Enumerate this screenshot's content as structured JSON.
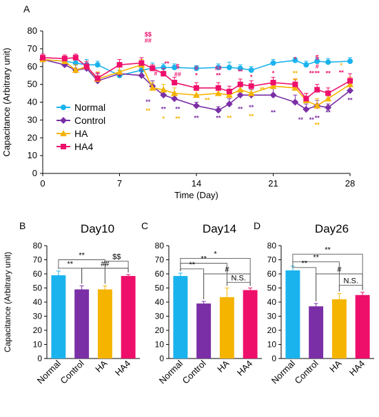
{
  "figure": {
    "panel_labels": [
      "A",
      "B",
      "C",
      "D"
    ]
  },
  "colors": {
    "Normal": "#1ab3ee",
    "Control": "#7b2fa6",
    "HA": "#f5b400",
    "HA4": "#ee0f6b",
    "axis": "#000000",
    "bracket": "#555555"
  },
  "chart_data": [
    {
      "panel": "A",
      "type": "line",
      "title": "",
      "xlabel": "Time (Day)",
      "ylabel": "Capacitance (Arbitrary unit)",
      "xlim": [
        0,
        28
      ],
      "ylim": [
        0,
        80
      ],
      "xticks": [
        0,
        7,
        14,
        21,
        28
      ],
      "yticks": [
        0,
        10,
        20,
        30,
        40,
        50,
        60,
        70,
        80
      ],
      "grid": false,
      "legend_position": "left-middle",
      "x": [
        0,
        2,
        3,
        4,
        5,
        7,
        9,
        10,
        11,
        12,
        14,
        16,
        17,
        18,
        19,
        21,
        23,
        24,
        25,
        26,
        28
      ],
      "series": [
        {
          "name": "Normal",
          "marker": "circle",
          "values": [
            64,
            63,
            62,
            61,
            61,
            55,
            58,
            59,
            59.5,
            59.5,
            59,
            59.5,
            59.5,
            59,
            58,
            62,
            63.5,
            61,
            63,
            62.5,
            63
          ],
          "errors": [
            1.5,
            1.5,
            2,
            3,
            2,
            3,
            4,
            3,
            2,
            2,
            1.5,
            2,
            3,
            2,
            2,
            2,
            1.5,
            2,
            2,
            2,
            2
          ]
        },
        {
          "name": "Control",
          "marker": "diamond",
          "values": [
            64,
            61,
            58,
            59,
            52,
            56,
            55,
            49,
            44,
            42,
            38,
            35.5,
            39,
            44,
            44,
            44,
            40,
            36,
            38,
            37,
            46.5
          ],
          "errors": [
            2,
            2,
            3,
            3,
            4,
            4,
            3,
            3,
            3,
            3,
            2,
            2,
            3,
            3,
            3,
            4,
            4,
            3,
            3,
            2,
            4
          ]
        },
        {
          "name": "HA",
          "marker": "triangle",
          "values": [
            64,
            63,
            58,
            60,
            53,
            57,
            61,
            48,
            47,
            45,
            44,
            45,
            44,
            47,
            45,
            49,
            48,
            41,
            38,
            42,
            50
          ],
          "errors": [
            2,
            2,
            3,
            3,
            4,
            4,
            3,
            3,
            3,
            3,
            3,
            3,
            3,
            3,
            3,
            3,
            3,
            4,
            4,
            3,
            4
          ]
        },
        {
          "name": "HA4",
          "marker": "square",
          "values": [
            65,
            64.5,
            65,
            60,
            53.5,
            61,
            62,
            59,
            56,
            51,
            48,
            48,
            46,
            50,
            49,
            51,
            50,
            42,
            47,
            45,
            52
          ],
          "errors": [
            2,
            2,
            2,
            3,
            3,
            3,
            3,
            2,
            3,
            3,
            3,
            3,
            3,
            3,
            3,
            3,
            3,
            3,
            3,
            3,
            4
          ]
        }
      ],
      "annotations": [
        {
          "x": 9.6,
          "y": 77,
          "text": "$$",
          "series": "HA4"
        },
        {
          "x": 9.6,
          "y": 73.5,
          "text": "##",
          "series": "HA4"
        },
        {
          "x": 9.6,
          "y": 39,
          "text": "**",
          "series": "Control"
        },
        {
          "x": 9.6,
          "y": 34,
          "text": "**",
          "series": "HA"
        },
        {
          "x": 10.3,
          "y": 55,
          "text": "#",
          "series": "HA4"
        },
        {
          "x": 11.3,
          "y": 60.5,
          "text": "**",
          "series": "HA4"
        },
        {
          "x": 11.0,
          "y": 35,
          "text": "**",
          "series": "Control"
        },
        {
          "x": 11.0,
          "y": 29.5,
          "text": "*",
          "series": "HA"
        },
        {
          "x": 12.3,
          "y": 59,
          "text": "$",
          "series": "HA4"
        },
        {
          "x": 12.3,
          "y": 54.5,
          "text": "##",
          "series": "HA4"
        },
        {
          "x": 12.3,
          "y": 35,
          "text": "**",
          "series": "Control"
        },
        {
          "x": 12.3,
          "y": 29.5,
          "text": "**",
          "series": "HA"
        },
        {
          "x": 14,
          "y": 58,
          "text": "#",
          "series": "HA4"
        },
        {
          "x": 14,
          "y": 54,
          "text": "*",
          "series": "HA4"
        },
        {
          "x": 14,
          "y": 30,
          "text": "**",
          "series": "Control"
        },
        {
          "x": 15,
          "y": 40,
          "text": "**",
          "series": "HA"
        },
        {
          "x": 16,
          "y": 58,
          "text": "##",
          "series": "HA4"
        },
        {
          "x": 16,
          "y": 54,
          "text": "**",
          "series": "HA4"
        },
        {
          "x": 16,
          "y": 30,
          "text": "**",
          "series": "Control"
        },
        {
          "x": 17,
          "y": 30,
          "text": "**",
          "series": "HA"
        },
        {
          "x": 18,
          "y": 56,
          "text": "**",
          "series": "HA4"
        },
        {
          "x": 18,
          "y": 35,
          "text": "**",
          "series": "Control"
        },
        {
          "x": 19,
          "y": 53,
          "text": "*",
          "series": "HA4"
        },
        {
          "x": 19,
          "y": 36,
          "text": "**",
          "series": "Control"
        },
        {
          "x": 19,
          "y": 31,
          "text": "**",
          "series": "HA"
        },
        {
          "x": 20,
          "y": 46,
          "text": "**",
          "series": "HA"
        },
        {
          "x": 21,
          "y": 55,
          "text": "*",
          "series": "HA4"
        },
        {
          "x": 21,
          "y": 33,
          "text": "**",
          "series": "Control"
        },
        {
          "x": 23,
          "y": 63,
          "text": "*",
          "series": "HA4"
        },
        {
          "x": 23,
          "y": 55,
          "text": "**",
          "series": "HA"
        },
        {
          "x": 23,
          "y": 51,
          "text": "**",
          "series": "HA"
        },
        {
          "x": 23.5,
          "y": 29,
          "text": "**",
          "series": "Control"
        },
        {
          "x": 24.5,
          "y": 55,
          "text": "**",
          "series": "HA4"
        },
        {
          "x": 24.5,
          "y": 29,
          "text": "**",
          "series": "Control"
        },
        {
          "x": 25,
          "y": 64,
          "text": "$",
          "series": "HA4"
        },
        {
          "x": 25,
          "y": 59,
          "text": "#",
          "series": "HA4"
        },
        {
          "x": 25,
          "y": 55,
          "text": "**",
          "series": "HA4"
        },
        {
          "x": 25,
          "y": 30,
          "text": "**",
          "series": "Control"
        },
        {
          "x": 25,
          "y": 26,
          "text": "**",
          "series": "HA"
        },
        {
          "x": 26,
          "y": 55,
          "text": "**",
          "series": "HA4"
        },
        {
          "x": 26,
          "y": 33,
          "text": "**",
          "series": "Control"
        },
        {
          "x": 27.2,
          "y": 59.5,
          "text": "*",
          "series": "HA"
        },
        {
          "x": 27.2,
          "y": 55.5,
          "text": "**",
          "series": "HA4"
        },
        {
          "x": 28,
          "y": 40,
          "text": "**",
          "series": "Control"
        }
      ]
    },
    {
      "panel": "B",
      "type": "bar",
      "title": "Day10",
      "ylabel": "Capacitance (Arbitrary unit)",
      "ylim": [
        0,
        80
      ],
      "yticks": [
        0,
        10,
        20,
        30,
        40,
        50,
        60,
        70,
        80
      ],
      "categories": [
        "Normal",
        "Control",
        "HA",
        "HA4"
      ],
      "values": [
        59,
        49,
        49,
        58.5
      ],
      "errors": [
        3,
        2.5,
        2.5,
        1
      ],
      "brackets": [
        {
          "from": "Normal",
          "to": "HA",
          "y": 70,
          "text": "**"
        },
        {
          "from": "Normal",
          "to": "Control",
          "y": 64,
          "text": "**"
        },
        {
          "from": "Control",
          "to": "HA4",
          "y": 64,
          "text": ""
        },
        {
          "from": "HA",
          "to": "HA4",
          "y": 69,
          "text": "$$"
        },
        {
          "from": "Control",
          "to": "HA4",
          "y": 64,
          "text": "##"
        }
      ]
    },
    {
      "panel": "C",
      "type": "bar",
      "title": "Day14",
      "ylim": [
        0,
        80
      ],
      "yticks": [
        0,
        10,
        20,
        30,
        40,
        50,
        60,
        70,
        80
      ],
      "categories": [
        "Normal",
        "Control",
        "HA",
        "HA4"
      ],
      "values": [
        58.5,
        39,
        43.5,
        48.5
      ],
      "errors": [
        2,
        1.5,
        6.5,
        1.5
      ],
      "brackets": [
        {
          "from": "Normal",
          "to": "HA4",
          "y": 71,
          "text": "*"
        },
        {
          "from": "Normal",
          "to": "HA",
          "y": 67.5,
          "text": "**"
        },
        {
          "from": "Normal",
          "to": "Control",
          "y": 63.5,
          "text": "**"
        },
        {
          "from": "Control",
          "to": "HA4",
          "y": 60,
          "text": "#"
        },
        {
          "from": "HA",
          "to": "HA4",
          "y": 54,
          "text": "N.S."
        }
      ]
    },
    {
      "panel": "D",
      "type": "bar",
      "title": "Day26",
      "ylim": [
        0,
        80
      ],
      "yticks": [
        0,
        10,
        20,
        30,
        40,
        50,
        60,
        70,
        80
      ],
      "categories": [
        "Normal",
        "Control",
        "HA",
        "HA4"
      ],
      "values": [
        62.5,
        37,
        42,
        45
      ],
      "errors": [
        3,
        2,
        4,
        2
      ],
      "brackets": [
        {
          "from": "Normal",
          "to": "HA4",
          "y": 74,
          "text": "**"
        },
        {
          "from": "Normal",
          "to": "HA",
          "y": 68.5,
          "text": "**"
        },
        {
          "from": "Normal",
          "to": "Control",
          "y": 64.5,
          "text": "**"
        },
        {
          "from": "Control",
          "to": "HA4",
          "y": 60,
          "text": "#"
        },
        {
          "from": "HA",
          "to": "HA4",
          "y": 52,
          "text": "N.S."
        }
      ]
    }
  ]
}
